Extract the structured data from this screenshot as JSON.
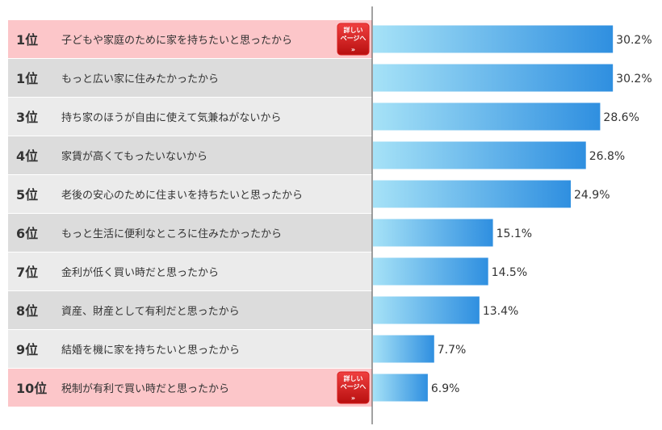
{
  "chart_data": {
    "type": "bar",
    "orientation": "horizontal",
    "title": "",
    "xlabel": "",
    "ylabel": "",
    "xlim": [
      0,
      40
    ],
    "value_suffix": "%",
    "grid": false,
    "legend": "none",
    "rows": [
      {
        "rank": "1位",
        "label": "子どもや家庭のために家を持ちたいと思ったから",
        "value": 30.2,
        "value_label": "30.2%",
        "highlight": true,
        "badge": true
      },
      {
        "rank": "1位",
        "label": "もっと広い家に住みたかったから",
        "value": 30.2,
        "value_label": "30.2%",
        "highlight": false,
        "badge": false
      },
      {
        "rank": "3位",
        "label": "持ち家のほうが自由に使えて気兼ねがないから",
        "value": 28.6,
        "value_label": "28.6%",
        "highlight": false,
        "badge": false
      },
      {
        "rank": "4位",
        "label": "家賃が高くてもったいないから",
        "value": 26.8,
        "value_label": "26.8%",
        "highlight": false,
        "badge": false
      },
      {
        "rank": "5位",
        "label": "老後の安心のために住まいを持ちたいと思ったから",
        "value": 24.9,
        "value_label": "24.9%",
        "highlight": false,
        "badge": false
      },
      {
        "rank": "6位",
        "label": "もっと生活に便利なところに住みたかったから",
        "value": 15.1,
        "value_label": "15.1%",
        "highlight": false,
        "badge": false
      },
      {
        "rank": "7位",
        "label": "金利が低く買い時だと思ったから",
        "value": 14.5,
        "value_label": "14.5%",
        "highlight": false,
        "badge": false
      },
      {
        "rank": "8位",
        "label": "資産、財産として有利だと思ったから",
        "value": 13.4,
        "value_label": "13.4%",
        "highlight": false,
        "badge": false
      },
      {
        "rank": "9位",
        "label": "結婚を機に家を持ちたいと思ったから",
        "value": 7.7,
        "value_label": "7.7%",
        "highlight": false,
        "badge": false
      },
      {
        "rank": "10位",
        "label": "税制が有利で買い時だと思ったから",
        "value": 6.9,
        "value_label": "6.9%",
        "highlight": true,
        "badge": true
      }
    ],
    "badge_text": {
      "line1": "詳しい",
      "line2": "ページへ",
      "arrow": "»"
    }
  },
  "colors": {
    "row_highlight": "#fcc6c9",
    "row_light": "#ebebeb",
    "row_dark": "#dcdcdc",
    "bar_start": "#a6e2f7",
    "bar_end": "#2f8fe0",
    "badge": "#d91e1e",
    "axis": "#444444"
  }
}
